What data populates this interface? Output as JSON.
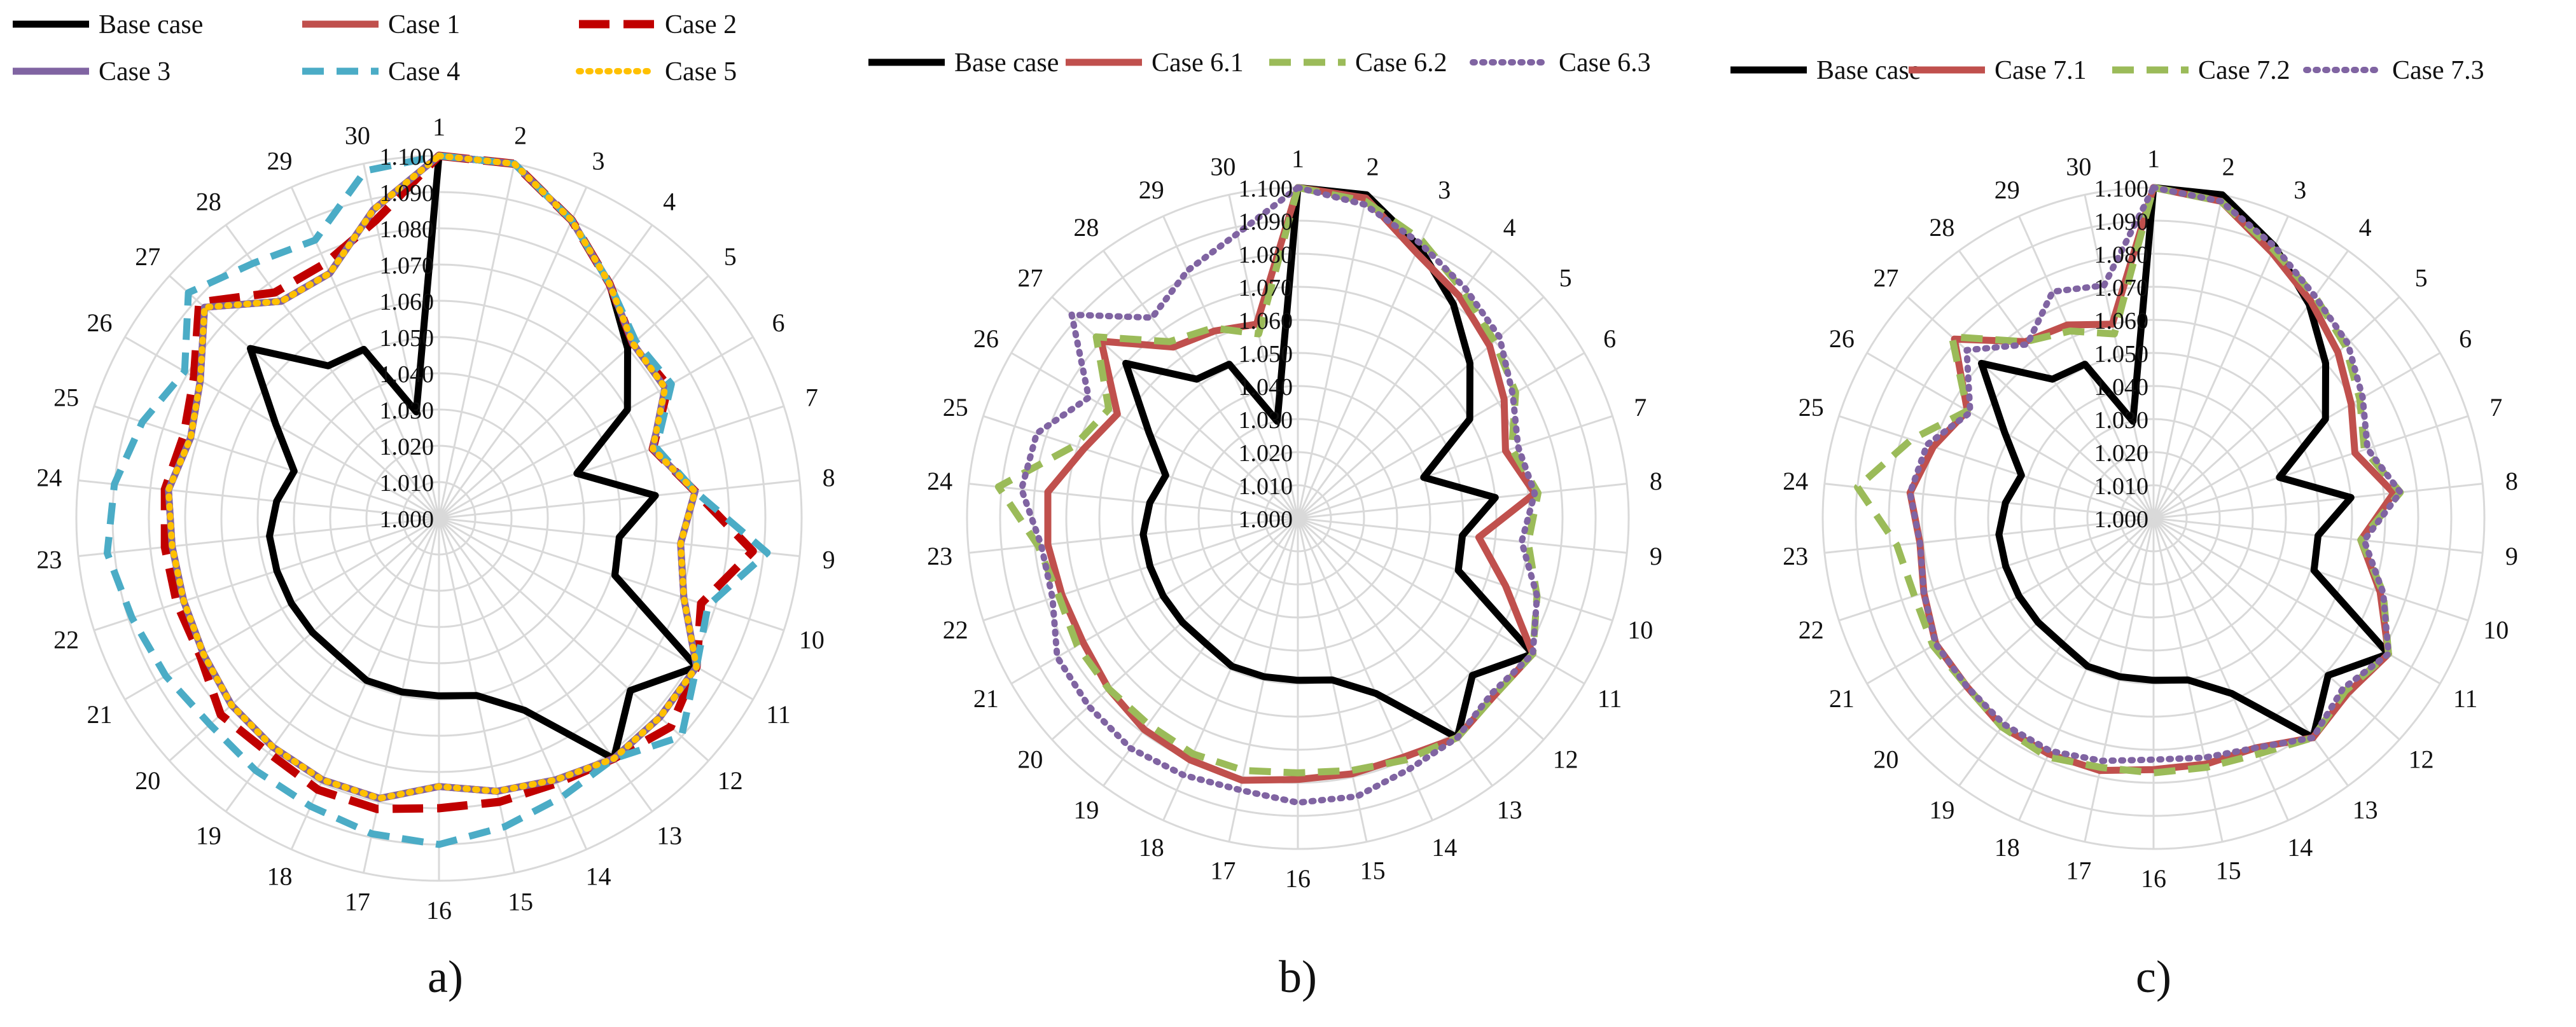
{
  "chart_data": [
    {
      "type": "radar",
      "panel_label": "a)",
      "categories": [
        "1",
        "2",
        "3",
        "4",
        "5",
        "6",
        "7",
        "8",
        "9",
        "10",
        "11",
        "12",
        "13",
        "14",
        "15",
        "16",
        "17",
        "18",
        "19",
        "20",
        "21",
        "22",
        "23",
        "24",
        "25",
        "26",
        "27",
        "28",
        "29",
        "30"
      ],
      "rticks": [
        "1.000",
        "1.010",
        "1.020",
        "1.030",
        "1.040",
        "1.050",
        "1.060",
        "1.070",
        "1.080",
        "1.090",
        "1.100"
      ],
      "rlim": [
        1.0,
        1.1
      ],
      "grid": true,
      "legend_position": "top",
      "series": [
        {
          "name": "Base case",
          "color": "#000000",
          "dash": "solid",
          "values": [
            1.1,
            1.1,
            1.09,
            1.08,
            1.07,
            1.06,
            1.04,
            1.06,
            1.05,
            1.051,
            1.082,
            1.071,
            1.082,
            1.058,
            1.05,
            1.049,
            1.049,
            1.049,
            1.047,
            1.047,
            1.047,
            1.047,
            1.047,
            1.045,
            1.042,
            1.052,
            1.07,
            1.052,
            1.051,
            1.03
          ]
        },
        {
          "name": "Case 1",
          "color": "#C0504D",
          "dash": "solid",
          "values": [
            1.1,
            1.1,
            1.09,
            1.08,
            1.072,
            1.072,
            1.062,
            1.071,
            1.067,
            1.071,
            1.082,
            1.082,
            1.082,
            1.079,
            1.077,
            1.074,
            1.079,
            1.079,
            1.078,
            1.077,
            1.075,
            1.074,
            1.074,
            1.075,
            1.072,
            1.076,
            1.087,
            1.074,
            1.074,
            1.087
          ]
        },
        {
          "name": "Case 2",
          "color": "#C00000",
          "dash": "bigdash",
          "values": [
            1.1,
            1.1,
            1.09,
            1.08,
            1.072,
            1.073,
            1.062,
            1.071,
            1.087,
            1.076,
            1.082,
            1.086,
            1.082,
            1.08,
            1.08,
            1.08,
            1.082,
            1.082,
            1.08,
            1.081,
            1.076,
            1.076,
            1.076,
            1.076,
            1.074,
            1.078,
            1.089,
            1.077,
            1.077,
            1.084
          ]
        },
        {
          "name": "Case 3",
          "color": "#8064A2",
          "dash": "solid",
          "values": [
            1.1,
            1.1,
            1.09,
            1.08,
            1.072,
            1.072,
            1.062,
            1.071,
            1.067,
            1.071,
            1.082,
            1.082,
            1.082,
            1.079,
            1.077,
            1.074,
            1.079,
            1.079,
            1.078,
            1.077,
            1.075,
            1.074,
            1.074,
            1.075,
            1.072,
            1.076,
            1.087,
            1.074,
            1.074,
            1.087
          ]
        },
        {
          "name": "Case 4",
          "color": "#4BACC6",
          "dash": "dash",
          "values": [
            1.1,
            1.1,
            1.09,
            1.08,
            1.073,
            1.074,
            1.063,
            1.071,
            1.091,
            1.078,
            1.082,
            1.09,
            1.082,
            1.084,
            1.087,
            1.09,
            1.089,
            1.087,
            1.086,
            1.085,
            1.087,
            1.089,
            1.092,
            1.09,
            1.086,
            1.081,
            1.093,
            1.087,
            1.084,
            1.098
          ]
        },
        {
          "name": "Case 5",
          "color": "#FFC000",
          "dash": "dot",
          "values": [
            1.1,
            1.1,
            1.09,
            1.08,
            1.072,
            1.072,
            1.062,
            1.071,
            1.067,
            1.071,
            1.082,
            1.082,
            1.082,
            1.079,
            1.077,
            1.074,
            1.079,
            1.079,
            1.078,
            1.077,
            1.075,
            1.074,
            1.074,
            1.075,
            1.072,
            1.076,
            1.087,
            1.074,
            1.074,
            1.087
          ]
        }
      ]
    },
    {
      "type": "radar",
      "panel_label": "b)",
      "categories": [
        "1",
        "2",
        "3",
        "4",
        "5",
        "6",
        "7",
        "8",
        "9",
        "10",
        "11",
        "12",
        "13",
        "14",
        "15",
        "16",
        "17",
        "18",
        "19",
        "20",
        "21",
        "22",
        "23",
        "24",
        "25",
        "26",
        "27",
        "28",
        "29",
        "30"
      ],
      "rticks": [
        "1.000",
        "1.010",
        "1.020",
        "1.030",
        "1.040",
        "1.050",
        "1.060",
        "1.070",
        "1.080",
        "1.090",
        "1.100"
      ],
      "rlim": [
        1.0,
        1.1
      ],
      "grid": true,
      "legend_position": "top",
      "series": [
        {
          "name": "Base case",
          "color": "#000000",
          "dash": "solid",
          "values": [
            1.1,
            1.1,
            1.09,
            1.08,
            1.07,
            1.06,
            1.04,
            1.06,
            1.05,
            1.051,
            1.082,
            1.071,
            1.082,
            1.058,
            1.05,
            1.049,
            1.049,
            1.049,
            1.047,
            1.047,
            1.047,
            1.047,
            1.047,
            1.045,
            1.042,
            1.052,
            1.07,
            1.052,
            1.051,
            1.03
          ]
        },
        {
          "name": "Case 6.1",
          "color": "#C0504D",
          "dash": "solid",
          "values": [
            1.1,
            1.099,
            1.088,
            1.083,
            1.078,
            1.072,
            1.066,
            1.072,
            1.055,
            1.066,
            1.082,
            1.08,
            1.082,
            1.079,
            1.079,
            1.079,
            1.081,
            1.08,
            1.079,
            1.077,
            1.075,
            1.075,
            1.076,
            1.076,
            1.068,
            1.063,
            1.08,
            1.064,
            1.062,
            1.06
          ]
        },
        {
          "name": "Case 6.2",
          "color": "#9BBB59",
          "dash": "dash",
          "values": [
            1.1,
            1.098,
            1.092,
            1.085,
            1.08,
            1.076,
            1.068,
            1.073,
            1.07,
            1.076,
            1.082,
            1.08,
            1.082,
            1.08,
            1.078,
            1.077,
            1.078,
            1.078,
            1.077,
            1.077,
            1.077,
            1.076,
            1.079,
            1.091,
            1.071,
            1.066,
            1.082,
            1.066,
            1.063,
            1.057
          ]
        },
        {
          "name": "Case 6.3",
          "color": "#8064A2",
          "dash": "dot",
          "values": [
            1.1,
            1.097,
            1.091,
            1.086,
            1.082,
            1.075,
            1.07,
            1.072,
            1.068,
            1.076,
            1.082,
            1.079,
            1.082,
            1.083,
            1.086,
            1.086,
            1.084,
            1.085,
            1.086,
            1.085,
            1.084,
            1.078,
            1.078,
            1.084,
            1.083,
            1.073,
            1.092,
            1.075,
            1.082,
            1.088
          ]
        }
      ]
    },
    {
      "type": "radar",
      "panel_label": "c)",
      "categories": [
        "1",
        "2",
        "3",
        "4",
        "5",
        "6",
        "7",
        "8",
        "9",
        "10",
        "11",
        "12",
        "13",
        "14",
        "15",
        "16",
        "17",
        "18",
        "19",
        "20",
        "21",
        "22",
        "23",
        "24",
        "25",
        "26",
        "27",
        "28",
        "29",
        "30"
      ],
      "rticks": [
        "1.000",
        "1.010",
        "1.020",
        "1.030",
        "1.040",
        "1.050",
        "1.060",
        "1.070",
        "1.080",
        "1.090",
        "1.100"
      ],
      "rlim": [
        1.0,
        1.1
      ],
      "grid": true,
      "legend_position": "top",
      "series": [
        {
          "name": "Base case",
          "color": "#000000",
          "dash": "solid",
          "values": [
            1.1,
            1.1,
            1.09,
            1.08,
            1.07,
            1.06,
            1.04,
            1.06,
            1.05,
            1.051,
            1.082,
            1.071,
            1.082,
            1.058,
            1.05,
            1.049,
            1.049,
            1.049,
            1.047,
            1.047,
            1.047,
            1.047,
            1.047,
            1.045,
            1.042,
            1.052,
            1.07,
            1.052,
            1.051,
            1.03
          ]
        },
        {
          "name": "Case 7.1",
          "color": "#C0504D",
          "dash": "solid",
          "values": [
            1.1,
            1.098,
            1.088,
            1.081,
            1.075,
            1.069,
            1.064,
            1.073,
            1.063,
            1.072,
            1.082,
            1.079,
            1.082,
            1.076,
            1.076,
            1.076,
            1.078,
            1.078,
            1.078,
            1.076,
            1.076,
            1.073,
            1.071,
            1.074,
            1.07,
            1.065,
            1.081,
            1.066,
            1.064,
            1.06
          ]
        },
        {
          "name": "Case 7.2",
          "color": "#9BBB59",
          "dash": "dash",
          "values": [
            1.1,
            1.098,
            1.089,
            1.083,
            1.078,
            1.072,
            1.067,
            1.075,
            1.063,
            1.073,
            1.082,
            1.078,
            1.082,
            1.078,
            1.077,
            1.077,
            1.077,
            1.079,
            1.078,
            1.076,
            1.077,
            1.076,
            1.078,
            1.09,
            1.077,
            1.065,
            1.082,
            1.066,
            1.062,
            1.057
          ]
        },
        {
          "name": "Case 7.3",
          "color": "#8064A2",
          "dash": "dot",
          "values": [
            1.1,
            1.098,
            1.09,
            1.083,
            1.079,
            1.073,
            1.068,
            1.075,
            1.064,
            1.073,
            1.082,
            1.077,
            1.082,
            1.076,
            1.074,
            1.073,
            1.075,
            1.077,
            1.077,
            1.076,
            1.076,
            1.073,
            1.071,
            1.074,
            1.072,
            1.064,
            1.076,
            1.065,
            1.075,
            1.072
          ]
        }
      ]
    }
  ]
}
